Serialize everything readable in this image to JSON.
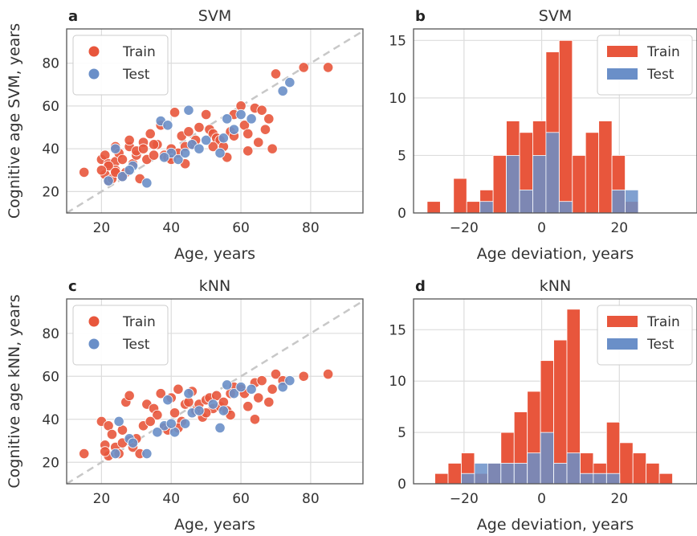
{
  "colors": {
    "train": "#e8563c",
    "test": "#6a8fc8",
    "diag": "#c8c8c8",
    "grid": "#dddddd",
    "frame": "#555555"
  },
  "chart_data": [
    {
      "panel": "a",
      "type": "scatter",
      "title": "SVM",
      "xlabel": "Age, years",
      "ylabel": "Cognitive age SVM, years",
      "xlim": [
        10,
        95
      ],
      "ylim": [
        10,
        96
      ],
      "xticks": [
        20,
        40,
        60,
        80
      ],
      "yticks": [
        20,
        40,
        60,
        80
      ],
      "grid": true,
      "legend": "top-left",
      "diagonal": true,
      "series": [
        {
          "name": "Train",
          "points": [
            [
              15,
              29
            ],
            [
              20,
              35
            ],
            [
              21,
              37
            ],
            [
              22,
              33
            ],
            [
              21,
              28
            ],
            [
              22,
              25
            ],
            [
              23,
              26
            ],
            [
              24,
              41
            ],
            [
              24,
              34
            ],
            [
              25,
              38
            ],
            [
              24,
              30
            ],
            [
              26,
              35
            ],
            [
              27,
              29
            ],
            [
              28,
              41
            ],
            [
              28,
              44
            ],
            [
              29,
              33
            ],
            [
              30,
              37
            ],
            [
              31,
              26
            ],
            [
              32,
              43
            ],
            [
              33,
              35
            ],
            [
              34,
              47
            ],
            [
              35,
              37
            ],
            [
              36,
              42
            ],
            [
              37,
              51
            ],
            [
              38,
              37
            ],
            [
              39,
              36
            ],
            [
              40,
              40
            ],
            [
              41,
              57
            ],
            [
              42,
              38
            ],
            [
              43,
              46
            ],
            [
              44,
              33
            ],
            [
              45,
              48
            ],
            [
              46,
              42
            ],
            [
              47,
              44
            ],
            [
              48,
              50
            ],
            [
              50,
              56
            ],
            [
              51,
              49
            ],
            [
              52,
              47
            ],
            [
              53,
              45
            ],
            [
              54,
              44
            ],
            [
              55,
              41
            ],
            [
              56,
              36
            ],
            [
              57,
              48
            ],
            [
              58,
              56
            ],
            [
              60,
              60
            ],
            [
              61,
              51
            ],
            [
              62,
              47
            ],
            [
              64,
              59
            ],
            [
              65,
              43
            ],
            [
              66,
              58
            ],
            [
              68,
              54
            ],
            [
              69,
              40
            ],
            [
              70,
              75
            ],
            [
              78,
              78
            ],
            [
              85,
              78
            ],
            [
              22,
              32
            ],
            [
              26,
              27
            ],
            [
              30,
              39
            ],
            [
              35,
              42
            ],
            [
              44,
              41
            ],
            [
              52,
              41
            ],
            [
              58,
              46
            ],
            [
              62,
              39
            ],
            [
              67,
              49
            ],
            [
              20,
              30
            ],
            [
              24,
              29
            ],
            [
              32,
              40
            ],
            [
              40,
              35
            ]
          ]
        },
        {
          "name": "Test",
          "points": [
            [
              24,
              40
            ],
            [
              26,
              27
            ],
            [
              29,
              32
            ],
            [
              33,
              24
            ],
            [
              37,
              53
            ],
            [
              39,
              51
            ],
            [
              40,
              38
            ],
            [
              42,
              35
            ],
            [
              44,
              38
            ],
            [
              45,
              58
            ],
            [
              46,
              42
            ],
            [
              50,
              44
            ],
            [
              54,
              38
            ],
            [
              55,
              45
            ],
            [
              56,
              54
            ],
            [
              58,
              49
            ],
            [
              60,
              56
            ],
            [
              63,
              54
            ],
            [
              72,
              67
            ],
            [
              74,
              71
            ],
            [
              38,
              36
            ],
            [
              48,
              40
            ],
            [
              22,
              25
            ],
            [
              28,
              30
            ]
          ]
        }
      ]
    },
    {
      "panel": "b",
      "type": "bar",
      "title": "SVM",
      "xlabel": "Age deviation, years",
      "ylabel": "",
      "xlim": [
        -33,
        40
      ],
      "ylim": [
        0,
        16
      ],
      "xticks": [
        -20,
        0,
        20
      ],
      "xtick_labels": [
        "−20",
        "0",
        "20"
      ],
      "yticks": [
        0,
        5,
        10,
        15
      ],
      "grid": true,
      "legend": "top-right",
      "stacked": false,
      "bin_start": -29.5,
      "bin_width": 3.4,
      "series": [
        {
          "name": "Train",
          "values": [
            1,
            0,
            3,
            1,
            2,
            5,
            8,
            7,
            8,
            14,
            15,
            5,
            7,
            8,
            5,
            1,
            0,
            0,
            0,
            0
          ]
        },
        {
          "name": "Test",
          "values": [
            0,
            0,
            0,
            0,
            1,
            0,
            5,
            2,
            5,
            7,
            1,
            0,
            0,
            0,
            2,
            2,
            0,
            0,
            0,
            0
          ]
        }
      ]
    },
    {
      "panel": "c",
      "type": "scatter",
      "title": "kNN",
      "xlabel": "Age, years",
      "ylabel": "Cognitive age kNN, years",
      "xlim": [
        10,
        95
      ],
      "ylim": [
        10,
        96
      ],
      "xticks": [
        20,
        40,
        60,
        80
      ],
      "yticks": [
        20,
        40,
        60,
        80
      ],
      "grid": true,
      "legend": "top-left",
      "diagonal": true,
      "series": [
        {
          "name": "Train",
          "points": [
            [
              15,
              24
            ],
            [
              20,
              39
            ],
            [
              21,
              28
            ],
            [
              22,
              23
            ],
            [
              22,
              37
            ],
            [
              23,
              33
            ],
            [
              24,
              27
            ],
            [
              25,
              24
            ],
            [
              26,
              35
            ],
            [
              27,
              48
            ],
            [
              28,
              51
            ],
            [
              28,
              30
            ],
            [
              29,
              27
            ],
            [
              30,
              31
            ],
            [
              31,
              24
            ],
            [
              32,
              37
            ],
            [
              33,
              47
            ],
            [
              35,
              45
            ],
            [
              36,
              42
            ],
            [
              37,
              52
            ],
            [
              38,
              36
            ],
            [
              39,
              35
            ],
            [
              40,
              50
            ],
            [
              41,
              43
            ],
            [
              42,
              54
            ],
            [
              43,
              39
            ],
            [
              44,
              47
            ],
            [
              45,
              48
            ],
            [
              46,
              53
            ],
            [
              47,
              44
            ],
            [
              48,
              47
            ],
            [
              49,
              41
            ],
            [
              50,
              49
            ],
            [
              51,
              50
            ],
            [
              52,
              45
            ],
            [
              53,
              51
            ],
            [
              54,
              46
            ],
            [
              55,
              48
            ],
            [
              56,
              44
            ],
            [
              57,
              42
            ],
            [
              58,
              55
            ],
            [
              60,
              54
            ],
            [
              61,
              52
            ],
            [
              62,
              46
            ],
            [
              64,
              57
            ],
            [
              65,
              50
            ],
            [
              66,
              58
            ],
            [
              68,
              48
            ],
            [
              69,
              54
            ],
            [
              70,
              61
            ],
            [
              72,
              58
            ],
            [
              78,
              60
            ],
            [
              85,
              61
            ],
            [
              21,
              25
            ],
            [
              26,
              29
            ],
            [
              34,
              39
            ],
            [
              42,
              36
            ],
            [
              50,
              43
            ],
            [
              57,
              52
            ],
            [
              64,
              40
            ]
          ]
        },
        {
          "name": "Test",
          "points": [
            [
              24,
              24
            ],
            [
              25,
              39
            ],
            [
              28,
              31
            ],
            [
              33,
              24
            ],
            [
              38,
              37
            ],
            [
              39,
              49
            ],
            [
              41,
              34
            ],
            [
              44,
              38
            ],
            [
              45,
              52
            ],
            [
              46,
              43
            ],
            [
              52,
              47
            ],
            [
              54,
              36
            ],
            [
              55,
              44
            ],
            [
              56,
              56
            ],
            [
              58,
              52
            ],
            [
              60,
              55
            ],
            [
              63,
              54
            ],
            [
              72,
              55
            ],
            [
              74,
              58
            ],
            [
              40,
              38
            ],
            [
              48,
              44
            ],
            [
              29,
              29
            ],
            [
              36,
              34
            ]
          ]
        }
      ]
    },
    {
      "panel": "d",
      "type": "bar",
      "title": "kNN",
      "xlabel": "Age deviation, years",
      "ylabel": "",
      "xlim": [
        -33,
        40
      ],
      "ylim": [
        0,
        18
      ],
      "xticks": [
        -20,
        0,
        20
      ],
      "xtick_labels": [
        "−20",
        "0",
        "20"
      ],
      "yticks": [
        0,
        5,
        10,
        15
      ],
      "grid": true,
      "legend": "top-right",
      "stacked": false,
      "bin_start": -27.5,
      "bin_width": 3.4,
      "series": [
        {
          "name": "Train",
          "values": [
            1,
            2,
            3,
            1,
            2,
            5,
            7,
            9,
            12,
            14,
            17,
            3,
            2,
            6,
            4,
            3,
            2,
            1,
            0,
            0
          ]
        },
        {
          "name": "Test",
          "values": [
            0,
            0,
            1,
            2,
            2,
            2,
            2,
            3,
            5,
            2,
            3,
            1,
            1,
            1,
            0,
            0,
            0,
            0,
            0,
            0
          ]
        }
      ]
    }
  ]
}
